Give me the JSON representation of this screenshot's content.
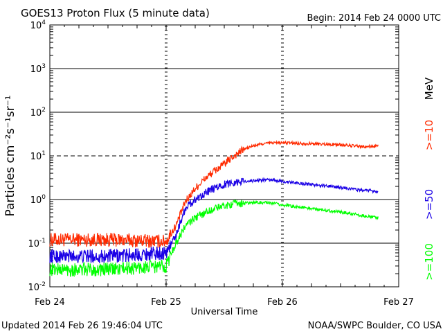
{
  "header": {
    "title": "GOES13 Proton Flux (5 minute data)",
    "begin": "Begin: 2014 Feb 24 0000 UTC"
  },
  "footer": {
    "updated": "Updated 2014 Feb 26 19:46:04 UTC",
    "source": "NOAA/SWPC Boulder, CO USA"
  },
  "chart_data": {
    "type": "line",
    "title": "GOES13 Proton Flux (5 minute data)",
    "xlabel": "Universal Time",
    "ylabel": "Particles cm⁻²s⁻¹sr⁻¹",
    "y_scale": "log",
    "ylim": [
      0.01,
      10000
    ],
    "xlim": [
      "2014-02-24 00:00",
      "2014-02-27 00:00"
    ],
    "x_ticks": [
      "Feb 24",
      "Feb 25",
      "Feb 26",
      "Feb 27"
    ],
    "y_ticks": [
      {
        "base": "10",
        "exp": "-2"
      },
      {
        "base": "10",
        "exp": "-1"
      },
      {
        "base": "10",
        "exp": "0"
      },
      {
        "base": "10",
        "exp": "1"
      },
      {
        "base": "10",
        "exp": "2"
      },
      {
        "base": "10",
        "exp": "3"
      },
      {
        "base": "10",
        "exp": "4"
      }
    ],
    "units_label": "MeV",
    "grid": "horizontal lines at each decade; dashed line at 10",
    "series": [
      {
        "name": ">=10",
        "color": "#ff2a00",
        "x": [
          "2014-02-24 00:00",
          "2014-02-24 12:00",
          "2014-02-25 00:00",
          "2014-02-25 02:00",
          "2014-02-25 04:00",
          "2014-02-25 06:00",
          "2014-02-25 08:00",
          "2014-02-25 10:00",
          "2014-02-25 12:00",
          "2014-02-25 14:00",
          "2014-02-25 16:00",
          "2014-02-25 18:00",
          "2014-02-25 20:00",
          "2014-02-25 22:00",
          "2014-02-26 00:00",
          "2014-02-26 06:00",
          "2014-02-26 12:00",
          "2014-02-26 17:00",
          "2014-02-26 19:45"
        ],
        "values": [
          0.12,
          0.12,
          0.11,
          0.25,
          0.9,
          1.8,
          3.0,
          4.5,
          6.5,
          10,
          14,
          17,
          19,
          20,
          20,
          19,
          18,
          16,
          17
        ]
      },
      {
        "name": ">=50",
        "color": "#1a00e6",
        "x": [
          "2014-02-24 00:00",
          "2014-02-24 12:00",
          "2014-02-25 00:00",
          "2014-02-25 02:00",
          "2014-02-25 04:00",
          "2014-02-25 06:00",
          "2014-02-25 08:00",
          "2014-02-25 10:00",
          "2014-02-25 12:00",
          "2014-02-25 14:00",
          "2014-02-25 16:00",
          "2014-02-25 18:00",
          "2014-02-25 20:00",
          "2014-02-25 22:00",
          "2014-02-26 00:00",
          "2014-02-26 06:00",
          "2014-02-26 12:00",
          "2014-02-26 17:00",
          "2014-02-26 19:45"
        ],
        "values": [
          0.05,
          0.05,
          0.06,
          0.15,
          0.65,
          1.0,
          1.4,
          1.8,
          2.2,
          2.5,
          2.6,
          2.7,
          2.8,
          2.8,
          2.6,
          2.2,
          1.9,
          1.6,
          1.55
        ]
      },
      {
        "name": ">=100",
        "color": "#00ff00",
        "x": [
          "2014-02-24 00:00",
          "2014-02-24 12:00",
          "2014-02-25 00:00",
          "2014-02-25 02:00",
          "2014-02-25 04:00",
          "2014-02-25 06:00",
          "2014-02-25 08:00",
          "2014-02-25 10:00",
          "2014-02-25 12:00",
          "2014-02-25 14:00",
          "2014-02-25 16:00",
          "2014-02-25 18:00",
          "2014-02-25 20:00",
          "2014-02-25 22:00",
          "2014-02-26 00:00",
          "2014-02-26 06:00",
          "2014-02-26 12:00",
          "2014-02-26 17:00",
          "2014-02-26 19:45"
        ],
        "values": [
          0.025,
          0.025,
          0.03,
          0.1,
          0.25,
          0.38,
          0.5,
          0.62,
          0.72,
          0.8,
          0.82,
          0.85,
          0.85,
          0.82,
          0.75,
          0.62,
          0.52,
          0.42,
          0.38
        ]
      }
    ]
  }
}
